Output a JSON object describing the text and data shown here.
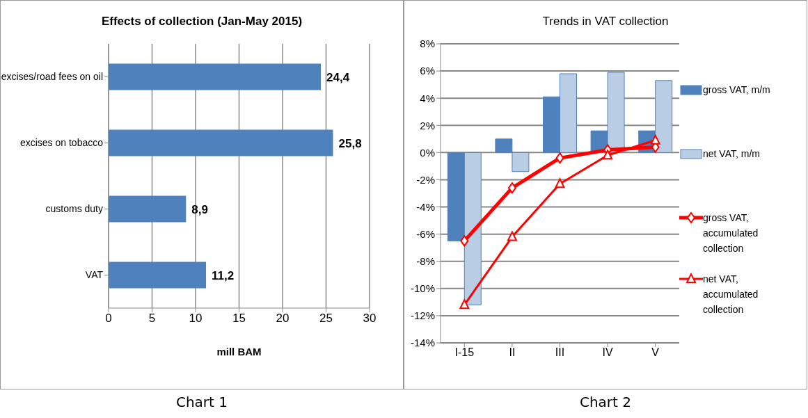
{
  "chart_data": [
    {
      "type": "bar",
      "orientation": "horizontal",
      "title": "Effects of collection (Jan-May 2015)",
      "categories": [
        "excises/road fees on oil",
        "excises on tobacco",
        "customs duty",
        "VAT"
      ],
      "values": [
        24.4,
        25.8,
        8.9,
        11.2
      ],
      "color": "#4f81bd",
      "value_labels": [
        "24,4",
        "25,8",
        "8,9",
        "11,2"
      ],
      "xlabel": "mill BAM",
      "xlim": [
        0,
        30
      ],
      "xticks": [
        0,
        5,
        10,
        15,
        20,
        25,
        30
      ],
      "grid": "x",
      "annotations": [
        "Chart 1"
      ]
    },
    {
      "type": "bar",
      "title": "Trends in VAT collection",
      "categories": [
        "I-15",
        "II",
        "III",
        "IV",
        "V"
      ],
      "series": [
        {
          "name": "gross VAT, m/m",
          "color": "#4f81bd",
          "values": [
            -6.5,
            1.0,
            4.1,
            1.6,
            1.6
          ]
        },
        {
          "name": "net VAT, m/m",
          "color": "#b9cde5",
          "values": [
            -11.2,
            -1.4,
            5.8,
            5.9,
            5.3
          ]
        },
        {
          "type": "line",
          "name": "gross VAT, accumulated collection",
          "color": "#ff0000",
          "values": [
            -6.5,
            -2.6,
            -0.4,
            0.2,
            0.4
          ],
          "marker": "diamond"
        },
        {
          "type": "line",
          "name": "net VAT, accumulated collection",
          "color": "#ff0000",
          "values": [
            -11.2,
            -6.2,
            -2.3,
            -0.2,
            0.9
          ],
          "marker": "triangle"
        }
      ],
      "ylim": [
        -14,
        8
      ],
      "yticks": [
        {
          "value": -14,
          "label": "-14%"
        },
        {
          "value": -12,
          "label": "-12%"
        },
        {
          "value": -10,
          "label": "-10%"
        },
        {
          "value": -8,
          "label": "-8%"
        },
        {
          "value": -6,
          "label": "-6%"
        },
        {
          "value": -4,
          "label": "-4%"
        },
        {
          "value": -2,
          "label": "-2%"
        },
        {
          "value": 0,
          "label": "0%"
        },
        {
          "value": 2,
          "label": "2%"
        },
        {
          "value": 4,
          "label": "4%"
        },
        {
          "value": 6,
          "label": "6%"
        },
        {
          "value": 8,
          "label": "8%"
        }
      ],
      "grid": "y",
      "legend": "right",
      "annotations": [
        "Chart 2"
      ]
    }
  ]
}
